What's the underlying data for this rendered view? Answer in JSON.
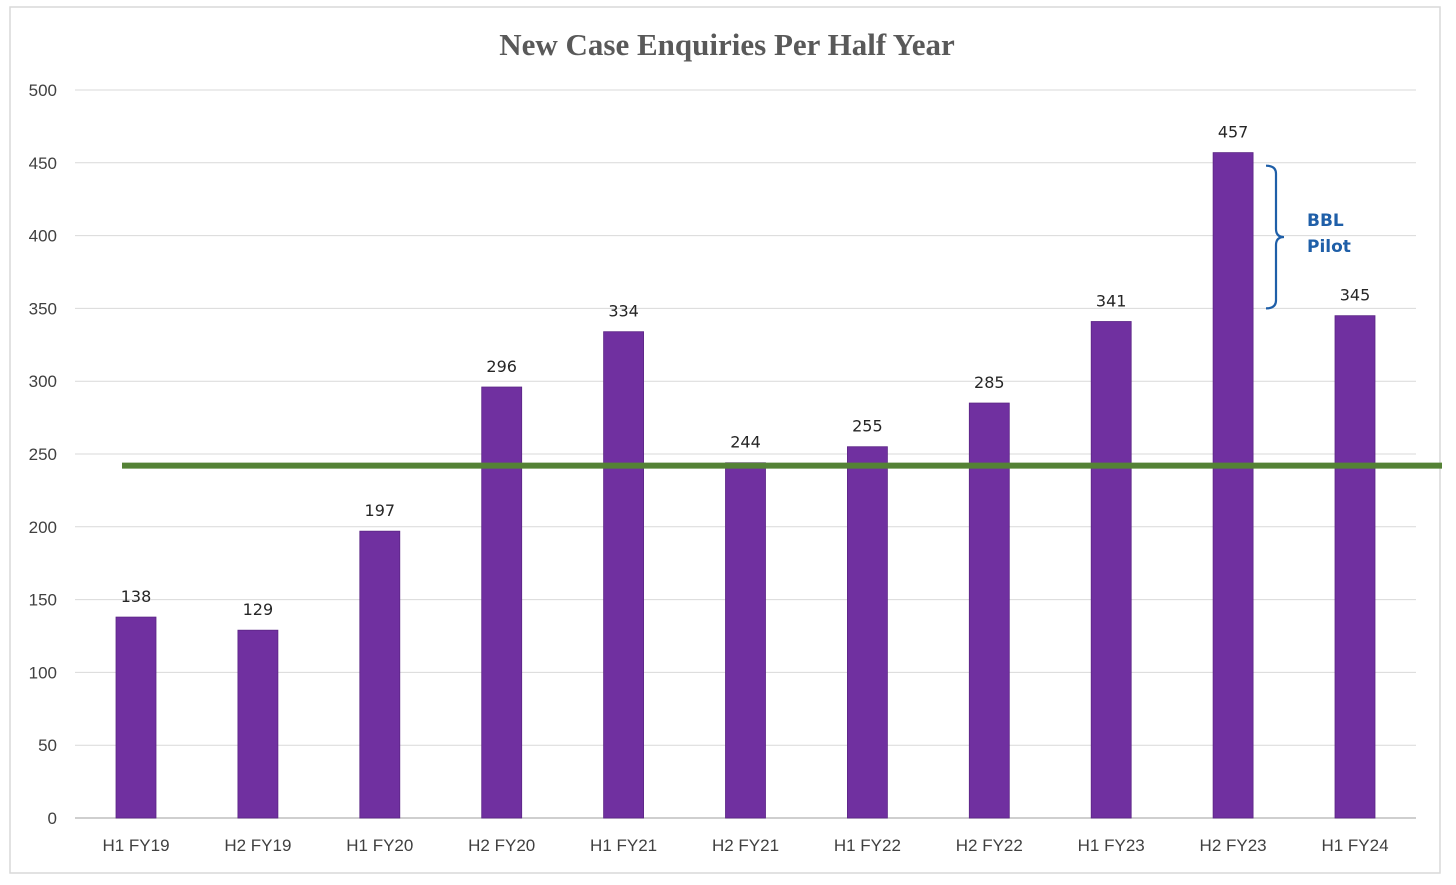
{
  "chart_data": {
    "type": "bar",
    "title": "New Case Enquiries Per Half Year",
    "categories": [
      "H1 FY19",
      "H2 FY19",
      "H1 FY20",
      "H2 FY20",
      "H1 FY21",
      "H2 FY21",
      "H1 FY22",
      "H2 FY22",
      "H1 FY23",
      "H2 FY23",
      "H1 FY24"
    ],
    "values": [
      138,
      129,
      197,
      296,
      334,
      244,
      255,
      285,
      341,
      457,
      345
    ],
    "value_labels": [
      "138",
      "129",
      "197",
      "296",
      "334",
      "244",
      "255",
      "285",
      "341",
      "457",
      "345"
    ],
    "y_ticks": [
      0,
      50,
      100,
      150,
      200,
      250,
      300,
      350,
      400,
      450,
      500
    ],
    "y_tick_labels": [
      "0",
      "50",
      "100",
      "150",
      "200",
      "250",
      "300",
      "350",
      "400",
      "450",
      "500"
    ],
    "ylim": [
      0,
      500
    ],
    "xlabel": "",
    "ylabel": "",
    "grid": true,
    "legend": "none",
    "bar_color": "#7030a0",
    "reference_line": {
      "value": 242,
      "color": "#548235"
    },
    "annotation": {
      "line1": "BBL",
      "line2": "Pilot",
      "color": "#1f5fa8",
      "bracket_range": [
        350,
        448
      ]
    }
  }
}
